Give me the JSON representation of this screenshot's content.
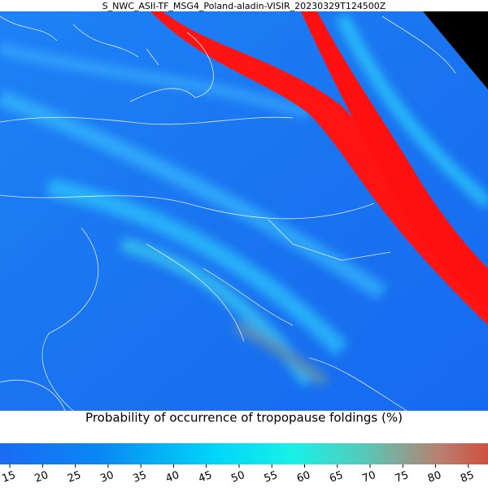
{
  "title": "S_NWC_ASII-TF_MSG4_Poland-aladin-VISIR_20230329T124500Z",
  "colorbar": {
    "label": "Probability of occurrence of tropopause foldings (%)",
    "range": [
      13.5,
      88
    ],
    "ticks": [
      15,
      20,
      25,
      30,
      35,
      40,
      45,
      50,
      55,
      60,
      65,
      70,
      75,
      80,
      85
    ]
  }
}
